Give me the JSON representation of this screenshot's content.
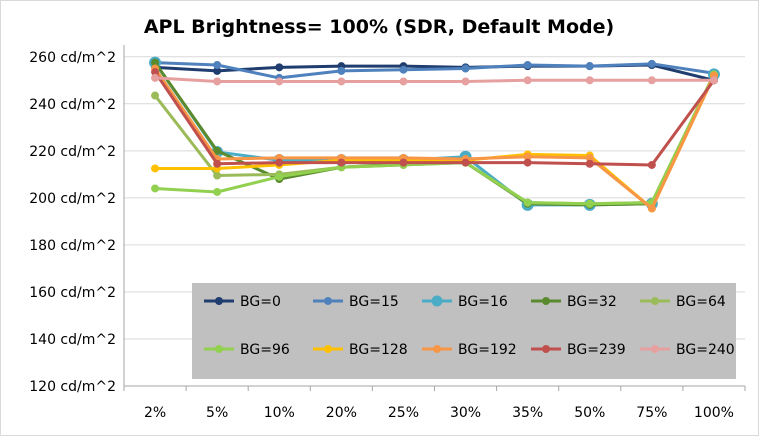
{
  "chart_data": {
    "type": "line",
    "title": "APL Brightness= 100% (SDR, Default Mode)",
    "xlabel": "",
    "ylabel": "",
    "categories": [
      "2%",
      "5%",
      "10%",
      "20%",
      "25%",
      "30%",
      "35%",
      "50%",
      "75%",
      "100%"
    ],
    "ylim": [
      120,
      265
    ],
    "yticks": [
      120,
      140,
      160,
      180,
      200,
      220,
      240,
      260
    ],
    "ytick_labels": [
      "120 cd/m^2",
      "140 cd/m^2",
      "160 cd/m^2",
      "180 cd/m^2",
      "200 cd/m^2",
      "220 cd/m^2",
      "240 cd/m^2",
      "260 cd/m^2"
    ],
    "grid": "horizontal",
    "legend_position": "bottom-right-inside",
    "series": [
      {
        "name": "BG=0",
        "color": "#1f3d6e",
        "marker": "circle",
        "values": [
          255.5,
          254,
          255.5,
          256,
          256,
          255.5,
          256,
          256,
          256.5,
          250
        ]
      },
      {
        "name": "BG=15",
        "color": "#4f81bd",
        "marker": "circle",
        "values": [
          257.5,
          256.5,
          251,
          254,
          254.5,
          255,
          256.5,
          256,
          257,
          253
        ]
      },
      {
        "name": "BG=16",
        "color": "#4bacc6",
        "marker": "circle-large",
        "values": [
          257.5,
          219.5,
          216,
          216,
          216,
          217.5,
          197,
          197,
          197.5,
          252.5
        ]
      },
      {
        "name": "BG=32",
        "color": "#5a8a2e",
        "marker": "circle",
        "values": [
          257.5,
          220,
          208,
          213,
          214.5,
          215,
          197.5,
          197,
          197.5,
          252.5
        ]
      },
      {
        "name": "BG=64",
        "color": "#9bbb59",
        "marker": "circle",
        "values": [
          243.5,
          209.5,
          210,
          213,
          214,
          215,
          198,
          197.5,
          198,
          252.5
        ]
      },
      {
        "name": "BG=96",
        "color": "#92d050",
        "marker": "circle",
        "values": [
          204,
          202.5,
          209,
          213,
          214,
          215,
          198,
          197.5,
          198,
          252.5
        ]
      },
      {
        "name": "BG=128",
        "color": "#ffc000",
        "marker": "circle",
        "values": [
          212.5,
          212.5,
          214,
          216,
          216,
          216,
          218.5,
          218,
          195.5,
          252
        ]
      },
      {
        "name": "BG=192",
        "color": "#f79646",
        "marker": "circle",
        "values": [
          255,
          216.5,
          217,
          217,
          217,
          216.5,
          217.5,
          217,
          195.5,
          252
        ]
      },
      {
        "name": "BG=239",
        "color": "#c0504d",
        "marker": "circle",
        "values": [
          253.5,
          214.5,
          215,
          215,
          215,
          215,
          215,
          214.5,
          214,
          250
        ]
      },
      {
        "name": "BG=240",
        "color": "#e6a0a0",
        "marker": "circle",
        "values": [
          251,
          249.5,
          249.5,
          249.5,
          249.5,
          249.5,
          250,
          250,
          250,
          250
        ]
      }
    ]
  }
}
